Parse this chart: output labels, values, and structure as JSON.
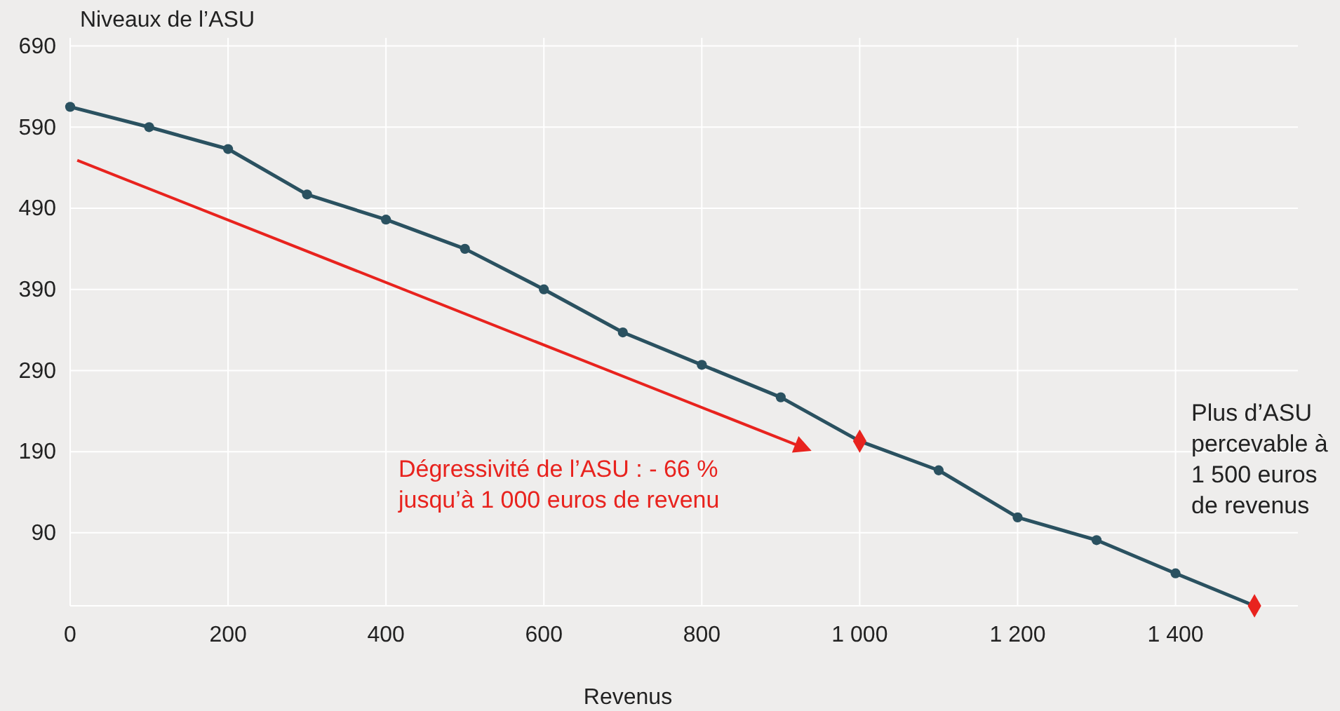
{
  "chart_data": {
    "type": "line",
    "xlabel": "Revenus",
    "ylabel": "Niveaux de l’ASU",
    "xlim": [
      0,
      1555
    ],
    "ylim": [
      0,
      700
    ],
    "xticks": [
      0,
      200,
      400,
      600,
      800,
      {
        "value": 1000,
        "label": "1 000"
      },
      {
        "value": 1200,
        "label": "1 200"
      },
      {
        "value": 1400,
        "label": "1 400"
      }
    ],
    "yticks": [
      90,
      190,
      290,
      390,
      490,
      590,
      690
    ],
    "grid": true,
    "series": [
      {
        "color": "#2a5160",
        "marker": "circle",
        "line_style": "solid",
        "x": [
          0,
          100,
          200,
          300,
          400,
          500,
          600,
          700,
          800,
          900,
          1000,
          1100,
          1200,
          1300,
          1400,
          1500
        ],
        "values": [
          615,
          590,
          563,
          507,
          476,
          440,
          390,
          337,
          297,
          257,
          203,
          167,
          109,
          81,
          40,
          0
        ]
      },
      {
        "type": "scatter",
        "color": "#e8231e",
        "marker": "diamond",
        "x": [
          1000,
          1500
        ],
        "values": [
          203,
          0
        ]
      }
    ],
    "annotations": [
      "Dégressivité de l’ASU : - 66 %\njusqu’à 1 000 euros de revenu",
      "Plus d’ASU\npercevable à\n1 500 euros\nde revenus"
    ]
  }
}
